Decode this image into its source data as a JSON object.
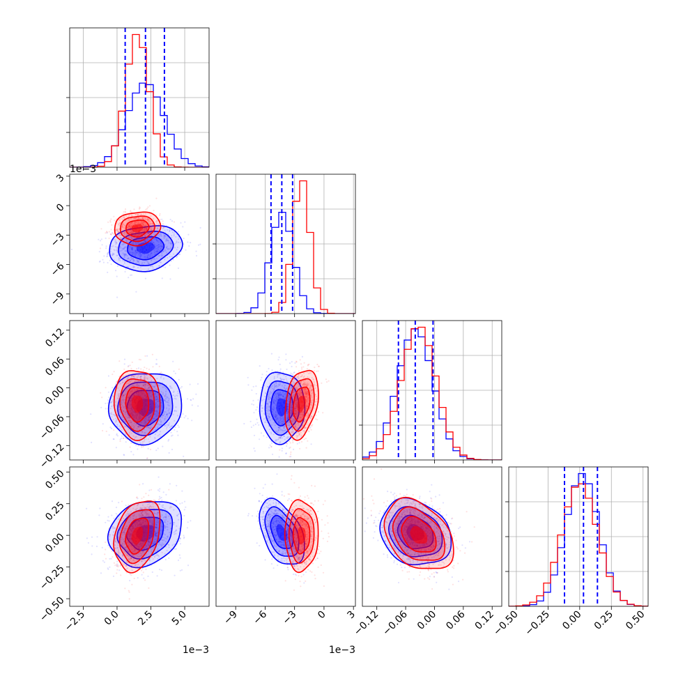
{
  "chart_data": {
    "type": "corner",
    "grid": true,
    "series": [
      {
        "color": "#0000ff"
      },
      {
        "color": "#ff0000"
      }
    ],
    "quantile_line_color": "#0000ff",
    "parameters": [
      {
        "range": [
          -3.5,
          6.8
        ],
        "ticks": [
          -2.5,
          0.0,
          2.5,
          5.0
        ],
        "tick_labels": [
          "−2.5",
          "0.0",
          "2.5",
          "5.0"
        ],
        "offset_label": "1e−3",
        "quantiles": [
          0.6,
          2.1,
          3.5
        ],
        "blue": {
          "mean": 2.1,
          "sd": 1.35
        },
        "red": {
          "mean": 1.5,
          "sd": 0.85
        }
      },
      {
        "range": [
          -11,
          3.2
        ],
        "ticks": [
          -9,
          -6,
          -3,
          0,
          3
        ],
        "tick_labels": [
          "−9",
          "−6",
          "−3",
          "0",
          "3"
        ],
        "offset_label": "1e−3",
        "quantiles": [
          -5.4,
          -4.3,
          -3.2
        ],
        "blue": {
          "mean": -4.3,
          "sd": 1.15
        },
        "red": {
          "mean": -2.3,
          "sd": 0.85
        }
      },
      {
        "range": [
          -0.15,
          0.14
        ],
        "ticks": [
          -0.12,
          -0.06,
          0.0,
          0.06,
          0.12
        ],
        "tick_labels": [
          "−0.12",
          "−0.06",
          "0.00",
          "0.06",
          "0.12"
        ],
        "offset_label": "",
        "quantiles": [
          -0.075,
          -0.04,
          -0.003
        ],
        "blue": {
          "mean": -0.04,
          "sd": 0.037
        },
        "red": {
          "mean": -0.033,
          "sd": 0.036
        }
      },
      {
        "range": [
          -0.56,
          0.54
        ],
        "ticks": [
          -0.5,
          -0.25,
          0.0,
          0.25,
          0.5
        ],
        "tick_labels": [
          "−0.50",
          "−0.25",
          "0.00",
          "0.25",
          "0.50"
        ],
        "offset_label": "",
        "quantiles": [
          -0.12,
          0.03,
          0.14
        ],
        "blue": {
          "mean": 0.02,
          "sd": 0.13
        },
        "red": {
          "mean": 0.0,
          "sd": 0.14
        }
      }
    ],
    "correlations": {
      "blue": {
        "1-0": 0.15,
        "2-0": 0.05,
        "2-1": 0.0,
        "3-0": 0.2,
        "3-1": -0.45,
        "3-2": -0.2
      },
      "red": {
        "1-0": 0.1,
        "2-0": -0.05,
        "2-1": 0.3,
        "3-0": 0.3,
        "3-1": 0.0,
        "3-2": -0.35
      }
    }
  }
}
